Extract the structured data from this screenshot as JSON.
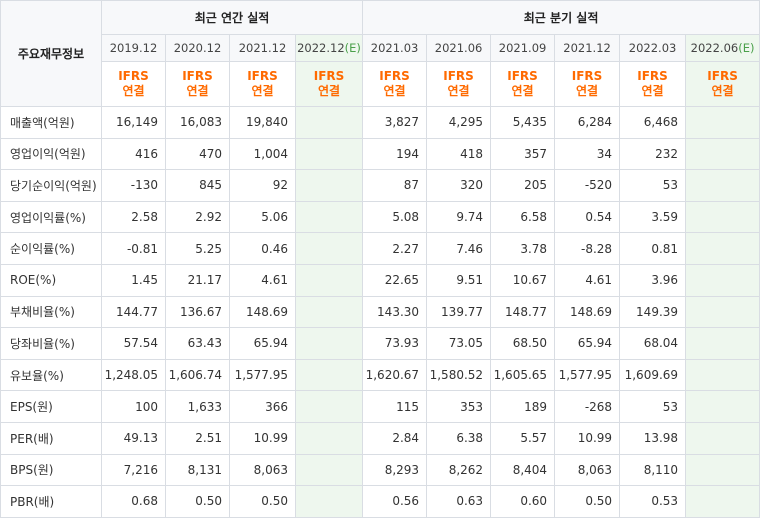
{
  "header": {
    "row_label": "주요재무정보",
    "annual_group": "최근 연간 실적",
    "quarter_group": "최근 분기 실적",
    "annual_periods": [
      "2019.12",
      "2020.12",
      "2021.12",
      "2022.12"
    ],
    "quarter_periods": [
      "2021.03",
      "2021.06",
      "2021.09",
      "2021.12",
      "2022.03",
      "2022.06"
    ],
    "estimate_suffix": "(E)",
    "ifrs_line1": "IFRS",
    "ifrs_line2": "연결"
  },
  "colors": {
    "negative": "#e02020",
    "ifrs": "#ff6a00",
    "estimate_bg": "#eef7ee"
  },
  "rows": [
    {
      "label": "매출액(억원)",
      "annual": [
        "16,149",
        "16,083",
        "19,840",
        ""
      ],
      "quarter": [
        "3,827",
        "4,295",
        "5,435",
        "6,284",
        "6,468",
        ""
      ]
    },
    {
      "label": "영업이익(억원)",
      "annual": [
        "416",
        "470",
        "1,004",
        ""
      ],
      "quarter": [
        "194",
        "418",
        "357",
        "34",
        "232",
        ""
      ]
    },
    {
      "label": "당기순이익(억원)",
      "annual": [
        "-130",
        "845",
        "92",
        ""
      ],
      "quarter": [
        "87",
        "320",
        "205",
        "-520",
        "53",
        ""
      ]
    },
    {
      "label": "영업이익률(%)",
      "annual": [
        "2.58",
        "2.92",
        "5.06",
        ""
      ],
      "quarter": [
        "5.08",
        "9.74",
        "6.58",
        "0.54",
        "3.59",
        ""
      ]
    },
    {
      "label": "순이익률(%)",
      "annual": [
        "-0.81",
        "5.25",
        "0.46",
        ""
      ],
      "quarter": [
        "2.27",
        "7.46",
        "3.78",
        "-8.28",
        "0.81",
        ""
      ]
    },
    {
      "label": "ROE(%)",
      "annual": [
        "1.45",
        "21.17",
        "4.61",
        ""
      ],
      "quarter": [
        "22.65",
        "9.51",
        "10.67",
        "4.61",
        "3.96",
        ""
      ]
    },
    {
      "label": "부채비율(%)",
      "annual": [
        "144.77",
        "136.67",
        "148.69",
        ""
      ],
      "quarter": [
        "143.30",
        "139.77",
        "148.77",
        "148.69",
        "149.39",
        ""
      ]
    },
    {
      "label": "당좌비율(%)",
      "annual": [
        "57.54",
        "63.43",
        "65.94",
        ""
      ],
      "quarter": [
        "73.93",
        "73.05",
        "68.50",
        "65.94",
        "68.04",
        ""
      ]
    },
    {
      "label": "유보율(%)",
      "annual": [
        "1,248.05",
        "1,606.74",
        "1,577.95",
        ""
      ],
      "quarter": [
        "1,620.67",
        "1,580.52",
        "1,605.65",
        "1,577.95",
        "1,609.69",
        ""
      ]
    },
    {
      "label": "EPS(원)",
      "annual": [
        "100",
        "1,633",
        "366",
        ""
      ],
      "quarter": [
        "115",
        "353",
        "189",
        "-268",
        "53",
        ""
      ]
    },
    {
      "label": "PER(배)",
      "annual": [
        "49.13",
        "2.51",
        "10.99",
        ""
      ],
      "quarter": [
        "2.84",
        "6.38",
        "5.57",
        "10.99",
        "13.98",
        ""
      ]
    },
    {
      "label": "BPS(원)",
      "annual": [
        "7,216",
        "8,131",
        "8,063",
        ""
      ],
      "quarter": [
        "8,293",
        "8,262",
        "8,404",
        "8,063",
        "8,110",
        ""
      ]
    },
    {
      "label": "PBR(배)",
      "annual": [
        "0.68",
        "0.50",
        "0.50",
        ""
      ],
      "quarter": [
        "0.56",
        "0.63",
        "0.60",
        "0.50",
        "0.53",
        ""
      ]
    }
  ]
}
